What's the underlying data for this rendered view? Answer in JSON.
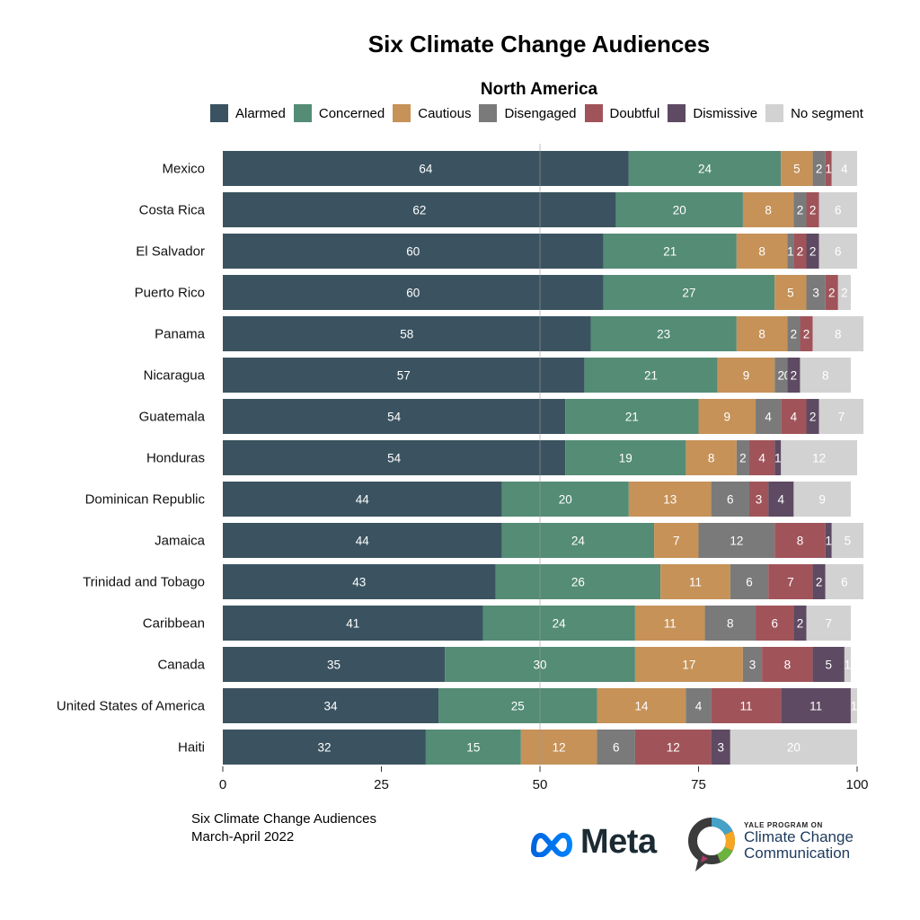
{
  "title": "Six Climate Change Audiences",
  "footer": {
    "line1": "Six Climate Change Audiences",
    "line2": "March-April  2022"
  },
  "logos": {
    "meta": "Meta",
    "yale_small": "YALE PROGRAM ON",
    "yale_line1": "Climate Change",
    "yale_line2": "Communication"
  },
  "chart_data": {
    "type": "bar",
    "orientation": "horizontal",
    "stacked": true,
    "title": "Six Climate Change Audiences",
    "subtitle": "North America",
    "xlim": [
      0,
      100
    ],
    "x_ticks": [
      "0",
      "25",
      "50",
      "75",
      "100"
    ],
    "legend_position": "top",
    "categories": [
      "Mexico",
      "Costa Rica",
      "El Salvador",
      "Puerto Rico",
      "Panama",
      "Nicaragua",
      "Guatemala",
      "Honduras",
      "Dominican Republic",
      "Jamaica",
      "Trinidad and Tobago",
      "Caribbean",
      "Canada",
      "United States of America",
      "Haiti"
    ],
    "series": [
      {
        "name": "Alarmed",
        "color": "#3b5360",
        "label_color": "#ffffff",
        "values": [
          64,
          62,
          60,
          60,
          58,
          57,
          54,
          54,
          44,
          44,
          43,
          41,
          35,
          34,
          32
        ]
      },
      {
        "name": "Concerned",
        "color": "#548c76",
        "label_color": "#ffffff",
        "values": [
          24,
          20,
          21,
          27,
          23,
          21,
          21,
          19,
          20,
          24,
          26,
          24,
          30,
          25,
          15
        ]
      },
      {
        "name": "Cautious",
        "color": "#c69258",
        "label_color": "#ffffff",
        "values": [
          5,
          8,
          8,
          5,
          8,
          9,
          9,
          8,
          13,
          7,
          11,
          11,
          17,
          14,
          12
        ]
      },
      {
        "name": "Disengaged",
        "color": "#7a7a7a",
        "label_color": "#ffffff",
        "values": [
          2,
          2,
          1,
          3,
          2,
          2,
          4,
          2,
          6,
          12,
          6,
          8,
          3,
          4,
          6
        ]
      },
      {
        "name": "Doubtful",
        "color": "#a0545a",
        "label_color": "#ffffff",
        "values": [
          1,
          2,
          2,
          2,
          2,
          0,
          4,
          4,
          3,
          8,
          7,
          6,
          8,
          11,
          12
        ]
      },
      {
        "name": "Dismissive",
        "color": "#5e4a62",
        "label_color": "#ffffff",
        "values": [
          0,
          0,
          2,
          0,
          0,
          2,
          2,
          1,
          4,
          1,
          2,
          2,
          5,
          11,
          3
        ]
      },
      {
        "name": "No segment",
        "color": "#d2d2d2",
        "label_color": "#ffffff",
        "values": [
          4,
          6,
          6,
          2,
          8,
          8,
          7,
          12,
          9,
          5,
          6,
          7,
          1,
          1,
          20
        ]
      }
    ],
    "segment_labels": [
      [
        "64",
        "24",
        "5",
        "2",
        "1",
        "",
        "4"
      ],
      [
        "62",
        "20",
        "8",
        "2",
        "2",
        "",
        "6"
      ],
      [
        "60",
        "21",
        "8",
        "1",
        "2",
        "2",
        "6"
      ],
      [
        "60",
        "27",
        "5",
        "3",
        "2",
        "",
        "2"
      ],
      [
        "58",
        "23",
        "8",
        "2",
        "2",
        "",
        "8"
      ],
      [
        "57",
        "21",
        "9",
        "2",
        "0",
        "2",
        "8"
      ],
      [
        "54",
        "21",
        "9",
        "4",
        "4",
        "2",
        "7"
      ],
      [
        "54",
        "19",
        "8",
        "2",
        "4",
        "1",
        "12"
      ],
      [
        "44",
        "20",
        "13",
        "6",
        "3",
        "4",
        "9"
      ],
      [
        "44",
        "24",
        "7",
        "12",
        "8",
        "1",
        "5"
      ],
      [
        "43",
        "26",
        "11",
        "6",
        "7",
        "2",
        "6"
      ],
      [
        "41",
        "24",
        "11",
        "8",
        "6",
        "2",
        "7"
      ],
      [
        "35",
        "30",
        "17",
        "3",
        "8",
        "5",
        "1"
      ],
      [
        "34",
        "25",
        "14",
        "4",
        "11",
        "11",
        "1"
      ],
      [
        "32",
        "15",
        "12",
        "6",
        "12",
        "3",
        "20"
      ]
    ]
  }
}
